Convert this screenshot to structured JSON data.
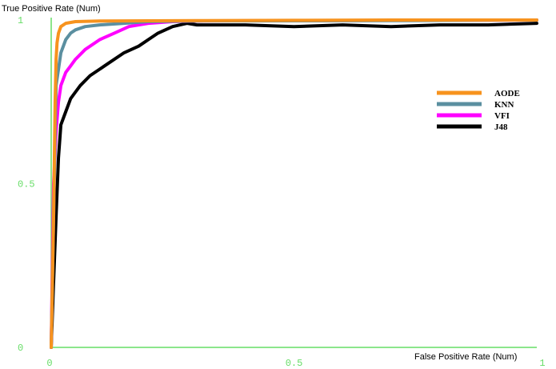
{
  "chart_data": {
    "type": "line",
    "title": "",
    "xlabel": "False Positive Rate (Num)",
    "ylabel": "True Positive Rate (Num)",
    "xlim": [
      0,
      1
    ],
    "ylim": [
      0,
      1
    ],
    "x_ticks": [
      "0",
      "0.5",
      "1"
    ],
    "y_ticks": [
      "0",
      "0.5",
      "1"
    ],
    "grid": false,
    "legend_position": "right",
    "axis_color": "#66dd66",
    "series": [
      {
        "name": "AODE",
        "color": "#f7931e",
        "x": [
          0,
          0.005,
          0.008,
          0.01,
          0.012,
          0.015,
          0.02,
          0.03,
          0.05,
          0.1,
          0.3,
          0.5,
          0.7,
          1.0
        ],
        "y": [
          0,
          0.4,
          0.75,
          0.88,
          0.93,
          0.96,
          0.98,
          0.99,
          0.995,
          0.997,
          0.998,
          0.999,
          1.0,
          1.0
        ]
      },
      {
        "name": "KNN",
        "color": "#5b8fa0",
        "x": [
          0,
          0.005,
          0.01,
          0.02,
          0.03,
          0.04,
          0.05,
          0.07,
          0.1,
          0.15,
          0.2,
          0.3,
          0.7,
          1.0
        ],
        "y": [
          0,
          0.4,
          0.8,
          0.9,
          0.94,
          0.96,
          0.97,
          0.98,
          0.985,
          0.99,
          0.995,
          0.997,
          0.998,
          1.0
        ]
      },
      {
        "name": "VFI",
        "color": "#ff00ff",
        "x": [
          0,
          0.005,
          0.01,
          0.015,
          0.02,
          0.03,
          0.04,
          0.05,
          0.07,
          0.1,
          0.13,
          0.16,
          0.2,
          0.25,
          0.3,
          0.5,
          1.0
        ],
        "y": [
          0,
          0.5,
          0.66,
          0.75,
          0.8,
          0.84,
          0.86,
          0.88,
          0.91,
          0.94,
          0.96,
          0.98,
          0.99,
          0.995,
          0.997,
          0.998,
          1.0
        ]
      },
      {
        "name": "J48",
        "color": "#000000",
        "x": [
          0,
          0.005,
          0.01,
          0.015,
          0.02,
          0.03,
          0.04,
          0.05,
          0.06,
          0.08,
          0.1,
          0.12,
          0.15,
          0.18,
          0.2,
          0.22,
          0.25,
          0.28,
          0.3,
          0.4,
          0.5,
          0.6,
          0.7,
          0.8,
          0.9,
          1.0
        ],
        "y": [
          0,
          0.2,
          0.4,
          0.58,
          0.68,
          0.72,
          0.76,
          0.78,
          0.8,
          0.83,
          0.85,
          0.87,
          0.9,
          0.92,
          0.94,
          0.96,
          0.98,
          0.99,
          0.985,
          0.985,
          0.98,
          0.985,
          0.98,
          0.985,
          0.985,
          0.99
        ]
      }
    ]
  }
}
